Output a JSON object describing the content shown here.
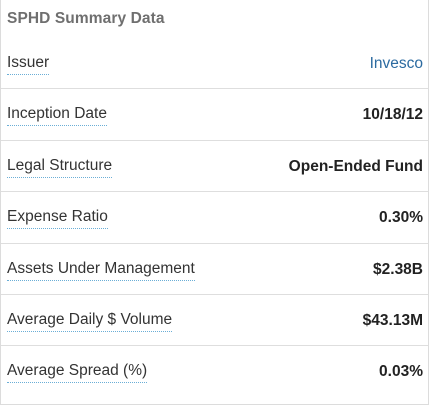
{
  "panel": {
    "title": "SPHD Summary Data"
  },
  "rows": [
    {
      "label": "Issuer",
      "value": "Invesco"
    },
    {
      "label": "Inception Date",
      "value": "10/18/12"
    },
    {
      "label": "Legal Structure",
      "value": "Open-Ended Fund"
    },
    {
      "label": "Expense Ratio",
      "value": "0.30%"
    },
    {
      "label": "Assets Under Management",
      "value": "$2.38B"
    },
    {
      "label": "Average Daily $ Volume",
      "value": "$43.13M"
    },
    {
      "label": "Average Spread (%)",
      "value": "0.03%"
    }
  ],
  "colors": {
    "title": "#6f6f6f",
    "link": "#2b6aa0",
    "label_underline": "#6aaed6",
    "divider": "#dedede"
  }
}
